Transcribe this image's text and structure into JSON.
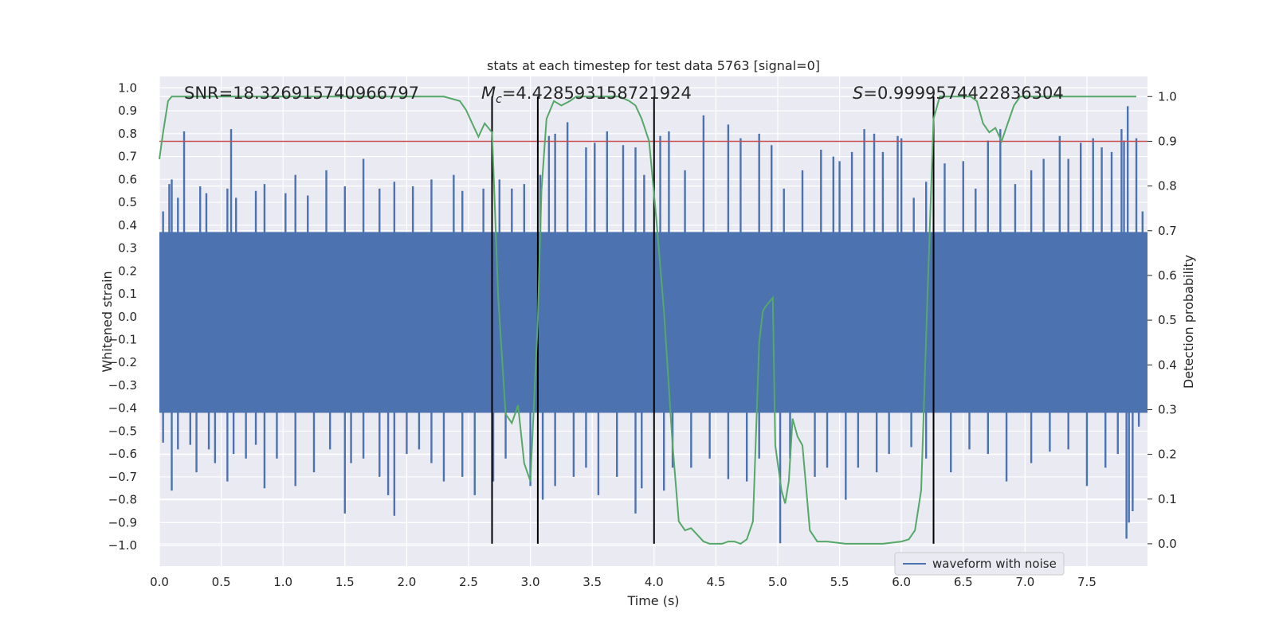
{
  "chart_data": {
    "type": "line",
    "title": "stats at each timestep for test data 5763 [signal=0]",
    "xlabel": "Time (s)",
    "ylabel": "Whitened strain",
    "y2label": "Detection probability",
    "xlim": [
      0.0,
      7.99
    ],
    "ylim": [
      -1.09,
      1.05
    ],
    "y2lim": [
      -0.05,
      1.045
    ],
    "grid": true,
    "x_ticks": [
      "0.0",
      "0.5",
      "1.0",
      "1.5",
      "2.0",
      "2.5",
      "3.0",
      "3.5",
      "4.0",
      "4.5",
      "5.0",
      "5.5",
      "6.0",
      "6.5",
      "7.0",
      "7.5"
    ],
    "y_ticks": [
      "1.0",
      "0.9",
      "0.8",
      "0.7",
      "0.6",
      "0.5",
      "0.4",
      "0.3",
      "0.2",
      "0.1",
      "0.0",
      "−0.1",
      "−0.2",
      "−0.3",
      "−0.4",
      "−0.5",
      "−0.6",
      "−0.7",
      "−0.8",
      "−0.9",
      "−1.0"
    ],
    "y2_ticks": [
      "1.0",
      "0.9",
      "0.8",
      "0.7",
      "0.6",
      "0.5",
      "0.4",
      "0.3",
      "0.2",
      "0.1",
      "0.0"
    ],
    "annotations": {
      "snr": "SNR=18.326915740966797",
      "mc_symbol": "M",
      "mc_sub": "c",
      "mc_value": "=4.428593158721924",
      "s_symbol": "S",
      "s_value": "=0.9999574422836304"
    },
    "legend": {
      "label": "waveform with noise",
      "location": "lower-right"
    },
    "threshold": {
      "value": 0.9,
      "color": "#c44e52"
    },
    "event_markers_s": [
      2.69,
      3.06,
      4.0,
      6.26
    ],
    "waveform": {
      "name": "waveform with noise",
      "color": "#4c72b0",
      "fill_range": [
        -0.42,
        0.37
      ],
      "peaks_upper": [
        [
          0.03,
          0.46
        ],
        [
          0.08,
          0.58
        ],
        [
          0.1,
          0.6
        ],
        [
          0.15,
          0.52
        ],
        [
          0.2,
          0.81
        ],
        [
          0.33,
          0.57
        ],
        [
          0.38,
          0.54
        ],
        [
          0.55,
          0.56
        ],
        [
          0.58,
          0.82
        ],
        [
          0.62,
          0.52
        ],
        [
          0.78,
          0.55
        ],
        [
          0.85,
          0.58
        ],
        [
          1.02,
          0.54
        ],
        [
          1.1,
          0.62
        ],
        [
          1.2,
          0.53
        ],
        [
          1.35,
          0.64
        ],
        [
          1.5,
          0.57
        ],
        [
          1.65,
          0.69
        ],
        [
          1.78,
          0.56
        ],
        [
          1.9,
          0.59
        ],
        [
          2.05,
          0.57
        ],
        [
          2.2,
          0.6
        ],
        [
          2.38,
          0.62
        ],
        [
          2.45,
          0.55
        ],
        [
          2.62,
          0.56
        ],
        [
          2.75,
          0.6
        ],
        [
          2.85,
          0.56
        ],
        [
          2.95,
          0.58
        ],
        [
          3.08,
          0.62
        ],
        [
          3.15,
          0.79
        ],
        [
          3.2,
          0.8
        ],
        [
          3.3,
          0.85
        ],
        [
          3.45,
          0.74
        ],
        [
          3.52,
          0.76
        ],
        [
          3.62,
          0.81
        ],
        [
          3.75,
          0.75
        ],
        [
          3.85,
          0.74
        ],
        [
          3.92,
          0.62
        ],
        [
          4.05,
          0.79
        ],
        [
          4.12,
          0.81
        ],
        [
          4.25,
          0.64
        ],
        [
          4.4,
          0.88
        ],
        [
          4.6,
          0.84
        ],
        [
          4.7,
          0.78
        ],
        [
          4.85,
          0.8
        ],
        [
          4.95,
          0.75
        ],
        [
          5.05,
          0.56
        ],
        [
          5.2,
          0.64
        ],
        [
          5.35,
          0.73
        ],
        [
          5.45,
          0.7
        ],
        [
          5.5,
          0.68
        ],
        [
          5.6,
          0.72
        ],
        [
          5.7,
          0.82
        ],
        [
          5.78,
          0.8
        ],
        [
          5.85,
          0.72
        ],
        [
          5.97,
          0.79
        ],
        [
          6.0,
          0.78
        ],
        [
          6.1,
          0.52
        ],
        [
          6.2,
          0.59
        ],
        [
          6.35,
          0.67
        ],
        [
          6.5,
          0.68
        ],
        [
          6.6,
          0.56
        ],
        [
          6.7,
          0.77
        ],
        [
          6.8,
          0.82
        ],
        [
          6.92,
          0.58
        ],
        [
          7.05,
          0.64
        ],
        [
          7.15,
          0.69
        ],
        [
          7.28,
          0.79
        ],
        [
          7.35,
          0.69
        ],
        [
          7.45,
          0.76
        ],
        [
          7.55,
          0.78
        ],
        [
          7.62,
          0.74
        ],
        [
          7.7,
          0.72
        ],
        [
          7.78,
          0.82
        ],
        [
          7.8,
          0.77
        ],
        [
          7.83,
          0.92
        ],
        [
          7.9,
          0.78
        ],
        [
          7.95,
          0.46
        ]
      ],
      "peaks_lower": [
        [
          0.03,
          -0.55
        ],
        [
          0.1,
          -0.76
        ],
        [
          0.15,
          -0.58
        ],
        [
          0.25,
          -0.56
        ],
        [
          0.3,
          -0.68
        ],
        [
          0.4,
          -0.58
        ],
        [
          0.45,
          -0.64
        ],
        [
          0.55,
          -0.72
        ],
        [
          0.6,
          -0.6
        ],
        [
          0.7,
          -0.62
        ],
        [
          0.78,
          -0.56
        ],
        [
          0.85,
          -0.75
        ],
        [
          0.95,
          -0.62
        ],
        [
          1.1,
          -0.74
        ],
        [
          1.25,
          -0.68
        ],
        [
          1.38,
          -0.58
        ],
        [
          1.5,
          -0.86
        ],
        [
          1.55,
          -0.64
        ],
        [
          1.65,
          -0.62
        ],
        [
          1.78,
          -0.7
        ],
        [
          1.85,
          -0.78
        ],
        [
          1.9,
          -0.87
        ],
        [
          2.0,
          -0.6
        ],
        [
          2.1,
          -0.58
        ],
        [
          2.2,
          -0.64
        ],
        [
          2.3,
          -0.72
        ],
        [
          2.45,
          -0.7
        ],
        [
          2.55,
          -0.78
        ],
        [
          2.7,
          -0.72
        ],
        [
          2.8,
          -0.62
        ],
        [
          3.0,
          -0.74
        ],
        [
          3.1,
          -0.8
        ],
        [
          3.2,
          -0.74
        ],
        [
          3.35,
          -0.7
        ],
        [
          3.45,
          -0.66
        ],
        [
          3.55,
          -0.78
        ],
        [
          3.7,
          -0.7
        ],
        [
          3.85,
          -0.86
        ],
        [
          3.9,
          -0.75
        ],
        [
          4.08,
          -0.76
        ],
        [
          4.15,
          -0.66
        ],
        [
          4.3,
          -0.66
        ],
        [
          4.45,
          -0.62
        ],
        [
          4.6,
          -0.71
        ],
        [
          4.75,
          -0.72
        ],
        [
          4.85,
          -0.62
        ],
        [
          5.02,
          -0.99
        ],
        [
          5.1,
          -0.62
        ],
        [
          5.3,
          -0.7
        ],
        [
          5.4,
          -0.66
        ],
        [
          5.55,
          -0.8
        ],
        [
          5.65,
          -0.66
        ],
        [
          5.8,
          -0.68
        ],
        [
          5.9,
          -0.6
        ],
        [
          6.08,
          -0.57
        ],
        [
          6.2,
          -0.62
        ],
        [
          6.4,
          -0.68
        ],
        [
          6.55,
          -0.58
        ],
        [
          6.7,
          -0.6
        ],
        [
          6.85,
          -0.72
        ],
        [
          7.05,
          -0.64
        ],
        [
          7.2,
          -0.59
        ],
        [
          7.35,
          -0.58
        ],
        [
          7.5,
          -0.74
        ],
        [
          7.65,
          -0.66
        ],
        [
          7.75,
          -0.6
        ],
        [
          7.82,
          -0.97
        ],
        [
          7.84,
          -0.9
        ],
        [
          7.87,
          -0.85
        ],
        [
          7.92,
          -0.48
        ]
      ]
    },
    "probability": {
      "name": "detection probability",
      "color": "#55a868",
      "x": [
        0.0,
        0.03,
        0.07,
        0.1,
        0.5,
        1.0,
        1.5,
        2.0,
        2.3,
        2.43,
        2.48,
        2.53,
        2.58,
        2.63,
        2.69,
        2.74,
        2.8,
        2.85,
        2.9,
        2.95,
        3.0,
        3.06,
        3.09,
        3.13,
        3.19,
        3.25,
        3.32,
        3.37,
        3.45,
        3.55,
        3.65,
        3.72,
        3.8,
        3.85,
        3.9,
        3.96,
        4.02,
        4.08,
        4.15,
        4.2,
        4.25,
        4.3,
        4.35,
        4.4,
        4.45,
        4.5,
        4.55,
        4.6,
        4.65,
        4.7,
        4.75,
        4.8,
        4.85,
        4.88,
        4.9,
        4.93,
        4.96,
        4.98,
        5.03,
        5.06,
        5.09,
        5.12,
        5.16,
        5.2,
        5.26,
        5.32,
        5.4,
        5.55,
        5.7,
        5.85,
        6.0,
        6.06,
        6.11,
        6.16,
        6.21,
        6.26,
        6.31,
        6.36,
        6.41,
        6.46,
        6.51,
        6.56,
        6.61,
        6.66,
        6.71,
        6.76,
        6.81,
        6.86,
        6.91,
        6.96,
        7.01,
        7.06,
        7.2,
        7.5,
        7.9
      ],
      "y": [
        0.86,
        0.92,
        0.99,
        1.0,
        1.0,
        1.0,
        1.0,
        1.0,
        1.0,
        0.99,
        0.97,
        0.94,
        0.91,
        0.94,
        0.92,
        0.55,
        0.29,
        0.27,
        0.31,
        0.18,
        0.14,
        0.5,
        0.79,
        0.95,
        0.99,
        0.98,
        0.99,
        1.0,
        1.0,
        1.0,
        1.0,
        1.0,
        0.99,
        0.98,
        0.95,
        0.9,
        0.72,
        0.52,
        0.22,
        0.05,
        0.03,
        0.035,
        0.02,
        0.005,
        0.0,
        0.0,
        0.0,
        0.005,
        0.005,
        0.0,
        0.01,
        0.05,
        0.45,
        0.52,
        0.53,
        0.54,
        0.55,
        0.22,
        0.12,
        0.09,
        0.14,
        0.28,
        0.24,
        0.22,
        0.03,
        0.005,
        0.005,
        0.0,
        0.0,
        0.0,
        0.005,
        0.01,
        0.03,
        0.12,
        0.55,
        0.95,
        1.0,
        1.0,
        1.0,
        1.0,
        1.0,
        1.0,
        0.99,
        0.94,
        0.92,
        0.93,
        0.9,
        0.94,
        0.98,
        1.0,
        1.0,
        1.0,
        1.0,
        1.0,
        1.0
      ]
    }
  }
}
